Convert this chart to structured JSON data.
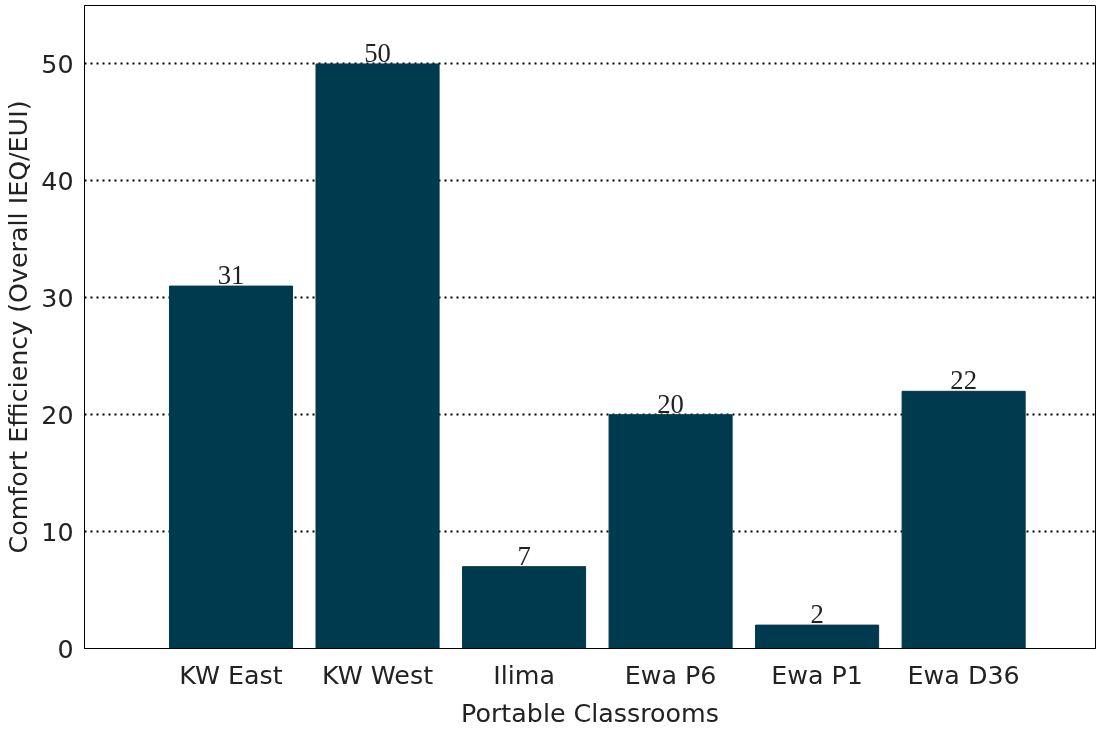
{
  "chart_data": {
    "type": "bar",
    "xlabel": "Portable Classrooms",
    "ylabel": "Comfort Efficiency (Overall IEQ/EUI)",
    "categories": [
      "KW East",
      "KW West",
      "Ilima",
      "Ewa P6",
      "Ewa P1",
      "Ewa D36"
    ],
    "values": [
      31,
      50,
      7,
      20,
      2,
      22
    ],
    "color": "#003a4f",
    "ylim": [
      0,
      55
    ],
    "yticks": [
      0,
      10,
      20,
      30,
      40,
      50
    ],
    "grid": "y",
    "data_labels": true
  }
}
